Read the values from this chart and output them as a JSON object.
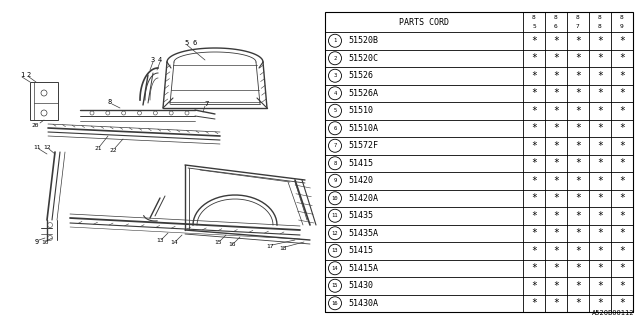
{
  "title": "A520B00112",
  "parts_cord_header": "PARTS CORD",
  "year_columns": [
    "85",
    "86",
    "87",
    "88",
    "89"
  ],
  "rows": [
    {
      "num": 1,
      "code": "51520B"
    },
    {
      "num": 2,
      "code": "51520C"
    },
    {
      "num": 3,
      "code": "51526"
    },
    {
      "num": 4,
      "code": "51526A"
    },
    {
      "num": 5,
      "code": "51510"
    },
    {
      "num": 6,
      "code": "51510A"
    },
    {
      "num": 7,
      "code": "51572F"
    },
    {
      "num": 8,
      "code": "51415"
    },
    {
      "num": 9,
      "code": "51420"
    },
    {
      "num": 10,
      "code": "51420A"
    },
    {
      "num": 11,
      "code": "51435"
    },
    {
      "num": 12,
      "code": "51435A"
    },
    {
      "num": 13,
      "code": "51415"
    },
    {
      "num": 14,
      "code": "51415A"
    },
    {
      "num": 15,
      "code": "51430"
    },
    {
      "num": 16,
      "code": "51430A"
    }
  ],
  "bg_color": "#ffffff"
}
